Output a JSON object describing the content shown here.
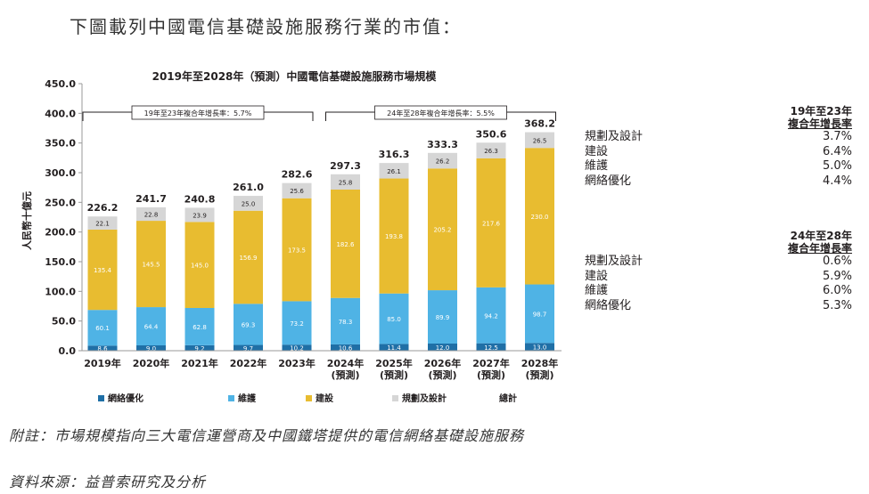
{
  "heading": "下圖載列中國電信基礎設施服務行業的市值：",
  "chart_data": {
    "type": "bar",
    "stacked": true,
    "title": "2019年至2028年（預測）中國電信基礎設施服務市場規模",
    "ylabel": "人民幣十億元",
    "xlabel": "",
    "ylim": [
      0,
      450
    ],
    "yticks": [
      "0.0",
      "50.0",
      "100.0",
      "150.0",
      "200.0",
      "250.0",
      "300.0",
      "350.0",
      "400.0",
      "450.0"
    ],
    "categories": [
      "2019年",
      "2020年",
      "2021年",
      "2022年",
      "2023年",
      "2024年\n(預測)",
      "2025年\n(預測)",
      "2026年\n(預測)",
      "2027年\n(預測)",
      "2028年\n(預測)"
    ],
    "series": [
      {
        "name": "網絡優化",
        "color": "#1f6fa6",
        "values": [
          8.6,
          9.0,
          9.2,
          9.7,
          10.2,
          10.6,
          11.4,
          12.0,
          12.5,
          13.0
        ],
        "labels": [
          "8.6",
          "9.0",
          "9.2",
          "9.7",
          "10.2",
          "10.6",
          "11.4",
          "12.0",
          "12.5",
          "13.0"
        ]
      },
      {
        "name": "維護",
        "color": "#4fb3e5",
        "values": [
          60.1,
          64.4,
          62.8,
          69.3,
          73.2,
          78.3,
          85.0,
          89.9,
          94.2,
          98.7
        ],
        "labels": [
          "60.1",
          "64.4",
          "62.8",
          "69.3",
          "73.2",
          "78.3",
          "85.0",
          "89.9",
          "94.2",
          "98.7"
        ]
      },
      {
        "name": "建設",
        "color": "#e8bc30",
        "values": [
          135.4,
          145.5,
          145.0,
          156.9,
          173.5,
          182.6,
          193.8,
          205.2,
          217.6,
          230.0
        ],
        "labels": [
          "135.4",
          "145.5",
          "145.0",
          "156.9",
          "173.5",
          "182.6",
          "193.8",
          "205.2",
          "217.6",
          "230.0"
        ]
      },
      {
        "name": "規劃及設計",
        "color": "#d6d6d6",
        "values": [
          22.1,
          22.8,
          23.9,
          25.0,
          25.6,
          25.8,
          26.1,
          26.2,
          26.3,
          26.5
        ],
        "labels": [
          "22.1",
          "22.8",
          "23.9",
          "25.0",
          "25.6",
          "25.8",
          "26.1",
          "26.2",
          "26.3",
          "26.5"
        ]
      }
    ],
    "totals": [
      "226.2",
      "241.7",
      "240.8",
      "261.0",
      "282.6",
      "297.3",
      "316.3",
      "333.3",
      "350.6",
      "368.2"
    ],
    "total_legend": "總計",
    "brackets": [
      {
        "label": "19年至23年複合年增長率：5.7%",
        "from": 0,
        "to": 4
      },
      {
        "label": "24年至28年複合年增長率：5.5%",
        "from": 5,
        "to": 9
      }
    ],
    "legend_position": "bottom"
  },
  "cagr_tables": [
    {
      "header_line1": "19年至23年",
      "header_line2": "複合年增長率",
      "rows": [
        {
          "label": "規劃及設計",
          "value": "3.7%"
        },
        {
          "label": "建設",
          "value": "6.4%"
        },
        {
          "label": "維護",
          "value": "5.0%"
        },
        {
          "label": "網絡優化",
          "value": "4.4%"
        }
      ]
    },
    {
      "header_line1": "24年至28年",
      "header_line2": "複合年增長率",
      "rows": [
        {
          "label": "規劃及設計",
          "value": "0.6%"
        },
        {
          "label": "建設",
          "value": "5.9%"
        },
        {
          "label": "維護",
          "value": "6.0%"
        },
        {
          "label": "網絡優化",
          "value": "5.3%"
        }
      ]
    }
  ],
  "notes": {
    "footnote": "附註：市場規模指向三大電信運營商及中國鐵塔提供的電信網絡基礎設施服務",
    "source": "資料來源：益普索研究及分析"
  }
}
